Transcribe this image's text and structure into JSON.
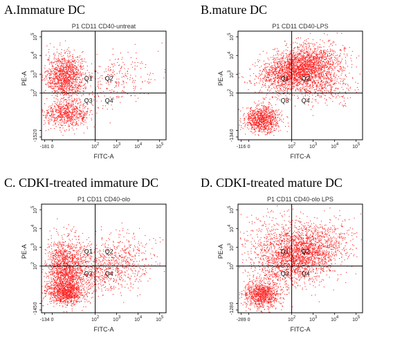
{
  "chart_data": [
    {
      "type": "scatter",
      "panel": "A",
      "title": "A.Immature DC",
      "sample": "P1 CD11 CD40-untreat",
      "xlabel": "FITC-A",
      "ylabel": "PE-A",
      "x_tick_labels": [
        "-181",
        "0",
        "10",
        "10",
        "10",
        "10"
      ],
      "y_tick_labels": [
        "-152",
        "0",
        "10",
        "10",
        "10",
        "10"
      ],
      "tick_exponents": [
        "",
        "",
        "2",
        "3",
        "4",
        "5"
      ],
      "quadrants": [
        "Q1",
        "Q2",
        "Q3",
        "Q4"
      ],
      "quadrant_gate": {
        "x": 2,
        "y": 2
      },
      "xlim": [
        -0.5,
        5.3
      ],
      "ylim": [
        -0.5,
        5.3
      ],
      "scale": "biexponential",
      "point_color": "#ff2020",
      "populations": [
        {
          "x": 0.6,
          "y": 2.9,
          "sx": 0.45,
          "sy": 0.6,
          "n": 1200,
          "corr": 0.0
        },
        {
          "x": 0.7,
          "y": 0.9,
          "sx": 0.55,
          "sy": 0.35,
          "n": 700,
          "corr": 0.0
        },
        {
          "x": 3.0,
          "y": 2.8,
          "sx": 0.9,
          "sy": 0.7,
          "n": 260,
          "corr": 0.2
        }
      ]
    },
    {
      "type": "scatter",
      "panel": "B",
      "title": "B.mature DC",
      "sample": "P1 CD11 CD40-LPS",
      "xlabel": "FITC-A",
      "ylabel": "PE-A",
      "x_tick_labels": [
        "-116",
        "0",
        "10",
        "10",
        "10",
        "10"
      ],
      "y_tick_labels": [
        "-134",
        "0",
        "10",
        "10",
        "10",
        "10"
      ],
      "tick_exponents": [
        "",
        "",
        "2",
        "3",
        "4",
        "5"
      ],
      "quadrants": [
        "Q1",
        "Q2",
        "Q3",
        "Q4"
      ],
      "quadrant_gate": {
        "x": 2,
        "y": 2
      },
      "xlim": [
        -0.5,
        5.3
      ],
      "ylim": [
        -0.5,
        5.3
      ],
      "scale": "biexponential",
      "point_color": "#ff2020",
      "populations": [
        {
          "x": 2.3,
          "y": 3.3,
          "sx": 0.9,
          "sy": 0.6,
          "n": 2600,
          "corr": 0.35
        },
        {
          "x": 0.6,
          "y": 0.6,
          "sx": 0.4,
          "sy": 0.35,
          "n": 900,
          "corr": 0.0
        },
        {
          "x": 3.5,
          "y": 2.5,
          "sx": 0.7,
          "sy": 0.6,
          "n": 400,
          "corr": 0.0
        }
      ]
    },
    {
      "type": "scatter",
      "panel": "C",
      "title": "C. CDKI-treated immature DC",
      "sample": "P1 CD11 CD40-olo",
      "xlabel": "FITC-A",
      "ylabel": "PE-A",
      "x_tick_labels": [
        "-134",
        "0",
        "10",
        "10",
        "10",
        "10"
      ],
      "y_tick_labels": [
        "-145",
        "0",
        "10",
        "10",
        "10",
        "10"
      ],
      "tick_exponents": [
        "",
        "",
        "2",
        "3",
        "4",
        "5"
      ],
      "quadrants": [
        "Q1",
        "Q2",
        "Q3",
        "Q4"
      ],
      "quadrant_gate": {
        "x": 2,
        "y": 2
      },
      "xlim": [
        -0.5,
        5.3
      ],
      "ylim": [
        -0.5,
        5.3
      ],
      "scale": "biexponential",
      "point_color": "#ff2020",
      "populations": [
        {
          "x": 0.6,
          "y": 1.9,
          "sx": 0.45,
          "sy": 0.8,
          "n": 1400,
          "corr": 0.0
        },
        {
          "x": 0.6,
          "y": 0.6,
          "sx": 0.4,
          "sy": 0.3,
          "n": 900,
          "corr": 0.0
        },
        {
          "x": 2.6,
          "y": 2.0,
          "sx": 1.0,
          "sy": 0.8,
          "n": 900,
          "corr": 0.25
        }
      ]
    },
    {
      "type": "scatter",
      "panel": "D",
      "title": "D. CDKI-treated mature DC",
      "sample": "P1 CD11 CD40-olo LPS",
      "xlabel": "FITC-A",
      "ylabel": "PE-A",
      "x_tick_labels": [
        "-289",
        "0",
        "10",
        "10",
        "10",
        "10"
      ],
      "y_tick_labels": [
        "-128",
        "0",
        "10",
        "10",
        "10",
        "10"
      ],
      "tick_exponents": [
        "",
        "",
        "2",
        "3",
        "4",
        "5"
      ],
      "quadrants": [
        "Q1",
        "Q2",
        "Q3",
        "Q4"
      ],
      "quadrant_gate": {
        "x": 2,
        "y": 2
      },
      "xlim": [
        -0.5,
        5.3
      ],
      "ylim": [
        -0.5,
        5.3
      ],
      "scale": "biexponential",
      "point_color": "#ff2020",
      "populations": [
        {
          "x": 2.4,
          "y": 2.6,
          "sx": 1.0,
          "sy": 0.8,
          "n": 2400,
          "corr": 0.3
        },
        {
          "x": 0.6,
          "y": 0.5,
          "sx": 0.4,
          "sy": 0.35,
          "n": 900,
          "corr": 0.0
        },
        {
          "x": 1.2,
          "y": 3.4,
          "sx": 0.9,
          "sy": 0.9,
          "n": 300,
          "corr": 0.0
        }
      ]
    }
  ]
}
